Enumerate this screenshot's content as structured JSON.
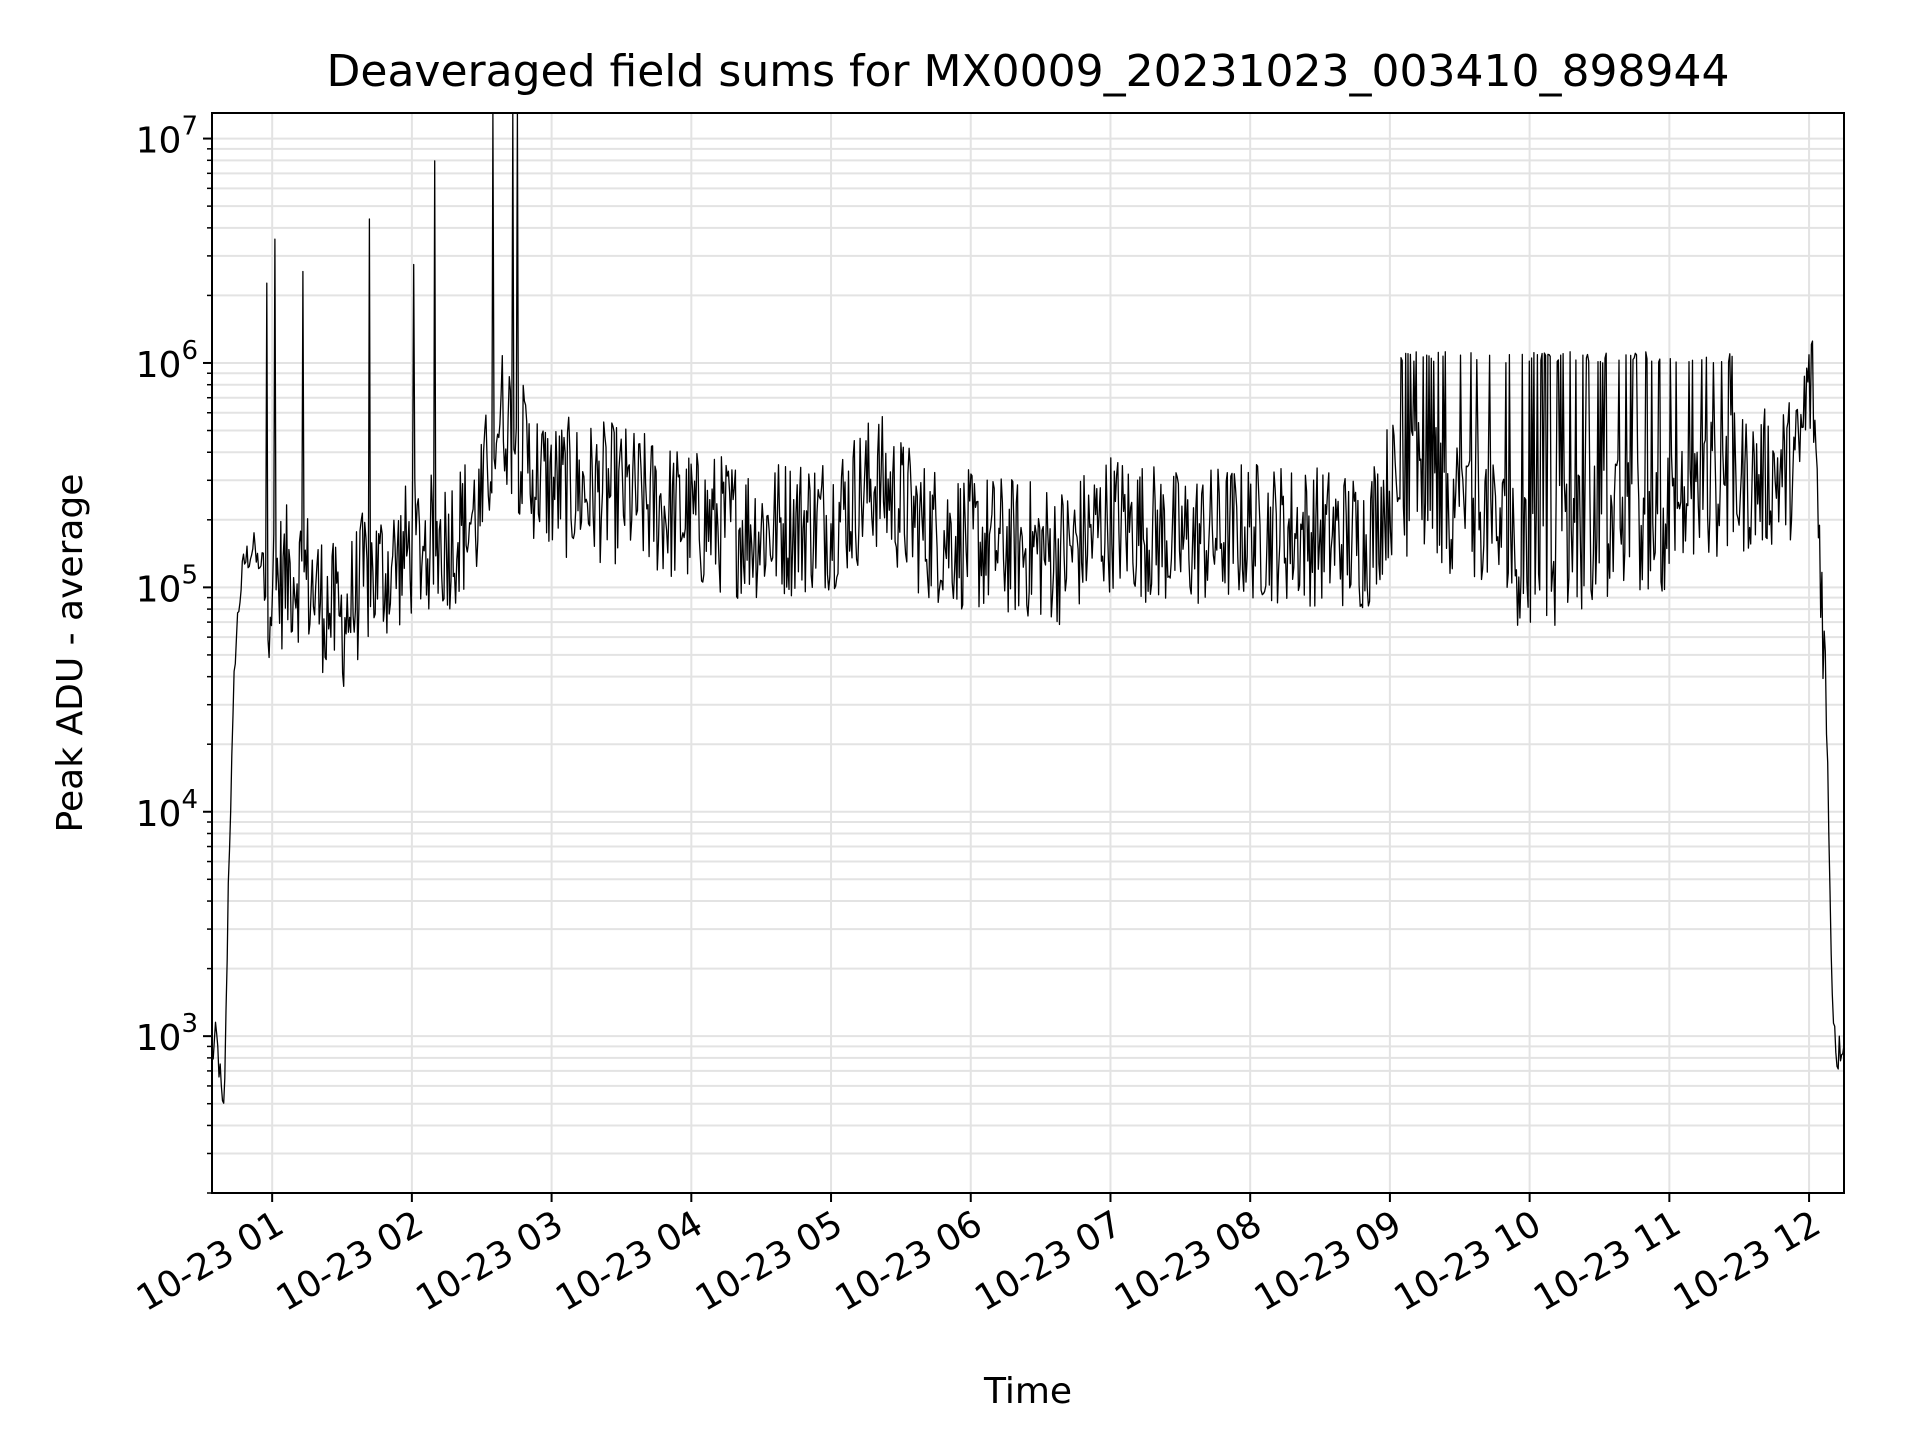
{
  "chart_data": {
    "type": "line",
    "title": "Deaveraged field sums for MX0009_20231023_003410_898944",
    "xlabel": "Time",
    "ylabel": "Peak ADU - average",
    "yscale": "log",
    "ylim": [
      200,
      13000000
    ],
    "xlim": [
      "2023-10-23T00:34:10",
      "2023-10-23T12:15:00"
    ],
    "grid": true,
    "line_color": "#000000",
    "x_ticks": [
      "10-23 01",
      "10-23 02",
      "10-23 03",
      "10-23 04",
      "10-23 05",
      "10-23 06",
      "10-23 07",
      "10-23 08",
      "10-23 09",
      "10-23 10",
      "10-23 11",
      "10-23 12"
    ],
    "y_ticks": [
      {
        "base": "10",
        "exp": "3",
        "value": 1000
      },
      {
        "base": "10",
        "exp": "4",
        "value": 10000
      },
      {
        "base": "10",
        "exp": "5",
        "value": 100000
      },
      {
        "base": "10",
        "exp": "6",
        "value": 1000000
      },
      {
        "base": "10",
        "exp": "7",
        "value": 10000000
      }
    ],
    "series": [
      {
        "x": [
          "2023-10-23T00:34:10",
          "2023-10-23T00:36:00",
          "2023-10-23T00:38:00",
          "2023-10-23T00:39:00",
          "2023-10-23T00:40:00",
          "2023-10-23T00:41:00",
          "2023-10-23T00:42:00",
          "2023-10-23T00:43:00",
          "2023-10-23T00:44:00",
          "2023-10-23T00:46:00",
          "2023-10-23T00:48:00",
          "2023-10-23T00:52:00",
          "2023-10-23T00:55:00",
          "2023-10-23T00:58:00",
          "2023-10-23T01:05:00",
          "2023-10-23T01:10:00",
          "2023-10-23T01:15:00",
          "2023-10-23T01:20:00",
          "2023-10-23T01:30:00",
          "2023-10-23T01:40:00",
          "2023-10-23T01:50:00",
          "2023-10-23T02:00:00",
          "2023-10-23T02:15:00",
          "2023-10-23T02:30:00",
          "2023-10-23T02:35:00",
          "2023-10-23T02:40:00",
          "2023-10-23T02:50:00",
          "2023-10-23T03:00:00",
          "2023-10-23T03:30:00",
          "2023-10-23T04:00:00",
          "2023-10-23T04:30:00",
          "2023-10-23T05:00:00",
          "2023-10-23T05:20:00",
          "2023-10-23T05:40:00",
          "2023-10-23T06:00:00",
          "2023-10-23T06:20:00",
          "2023-10-23T06:40:00",
          "2023-10-23T07:00:00",
          "2023-10-23T07:30:00",
          "2023-10-23T08:00:00",
          "2023-10-23T08:30:00",
          "2023-10-23T08:50:00",
          "2023-10-23T09:00:00",
          "2023-10-23T09:20:00",
          "2023-10-23T09:40:00",
          "2023-10-23T10:00:00",
          "2023-10-23T10:30:00",
          "2023-10-23T11:00:00",
          "2023-10-23T11:20:00",
          "2023-10-23T11:40:00",
          "2023-10-23T11:55:00",
          "2023-10-23T12:00:00",
          "2023-10-23T12:02:00",
          "2023-10-23T12:04:00",
          "2023-10-23T12:06:00",
          "2023-10-23T12:08:00",
          "2023-10-23T12:10:00",
          "2023-10-23T12:12:00",
          "2023-10-23T12:15:00"
        ],
        "y": [
          800,
          1000,
          600,
          400,
          900,
          4000,
          10000,
          20000,
          50000,
          90000,
          130000,
          150000,
          110000,
          100000,
          110000,
          120000,
          110000,
          90000,
          70000,
          110000,
          120000,
          150000,
          160000,
          220000,
          500000,
          600000,
          350000,
          280000,
          260000,
          200000,
          180000,
          200000,
          300000,
          180000,
          160000,
          150000,
          140000,
          200000,
          160000,
          180000,
          170000,
          160000,
          280000,
          250000,
          220000,
          120000,
          180000,
          200000,
          280000,
          300000,
          350000,
          800000,
          700000,
          200000,
          80000,
          15000,
          1500,
          800,
          1000
        ]
      }
    ]
  }
}
